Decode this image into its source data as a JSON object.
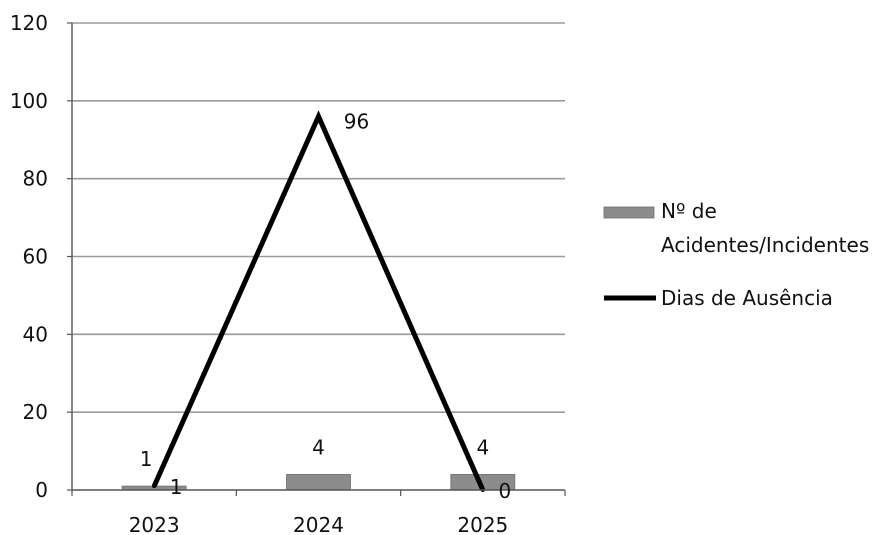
{
  "chart_data": {
    "type": "bar",
    "categories": [
      "2023",
      "2024",
      "2025"
    ],
    "series": [
      {
        "name": "Nº de Acidentes/Incidentes",
        "type": "bar",
        "values": [
          1,
          4,
          4
        ],
        "color": "#8c8c8c",
        "data_labels": [
          "1",
          "4",
          "4"
        ]
      },
      {
        "name": "Dias de Ausência",
        "type": "line",
        "values": [
          1,
          96,
          0
        ],
        "color": "#000000",
        "data_labels": [
          "1",
          "96",
          "0"
        ]
      }
    ],
    "ylim": [
      0,
      120
    ],
    "yticks": [
      "0",
      "20",
      "40",
      "60",
      "80",
      "100",
      "120"
    ],
    "grid": true,
    "legend": {
      "position": "right",
      "items": [
        {
          "lines": [
            "Nº de",
            "Acidentes/Incidentes"
          ],
          "symbol": "bar"
        },
        {
          "lines": [
            "Dias de Ausência"
          ],
          "symbol": "line"
        }
      ]
    }
  }
}
